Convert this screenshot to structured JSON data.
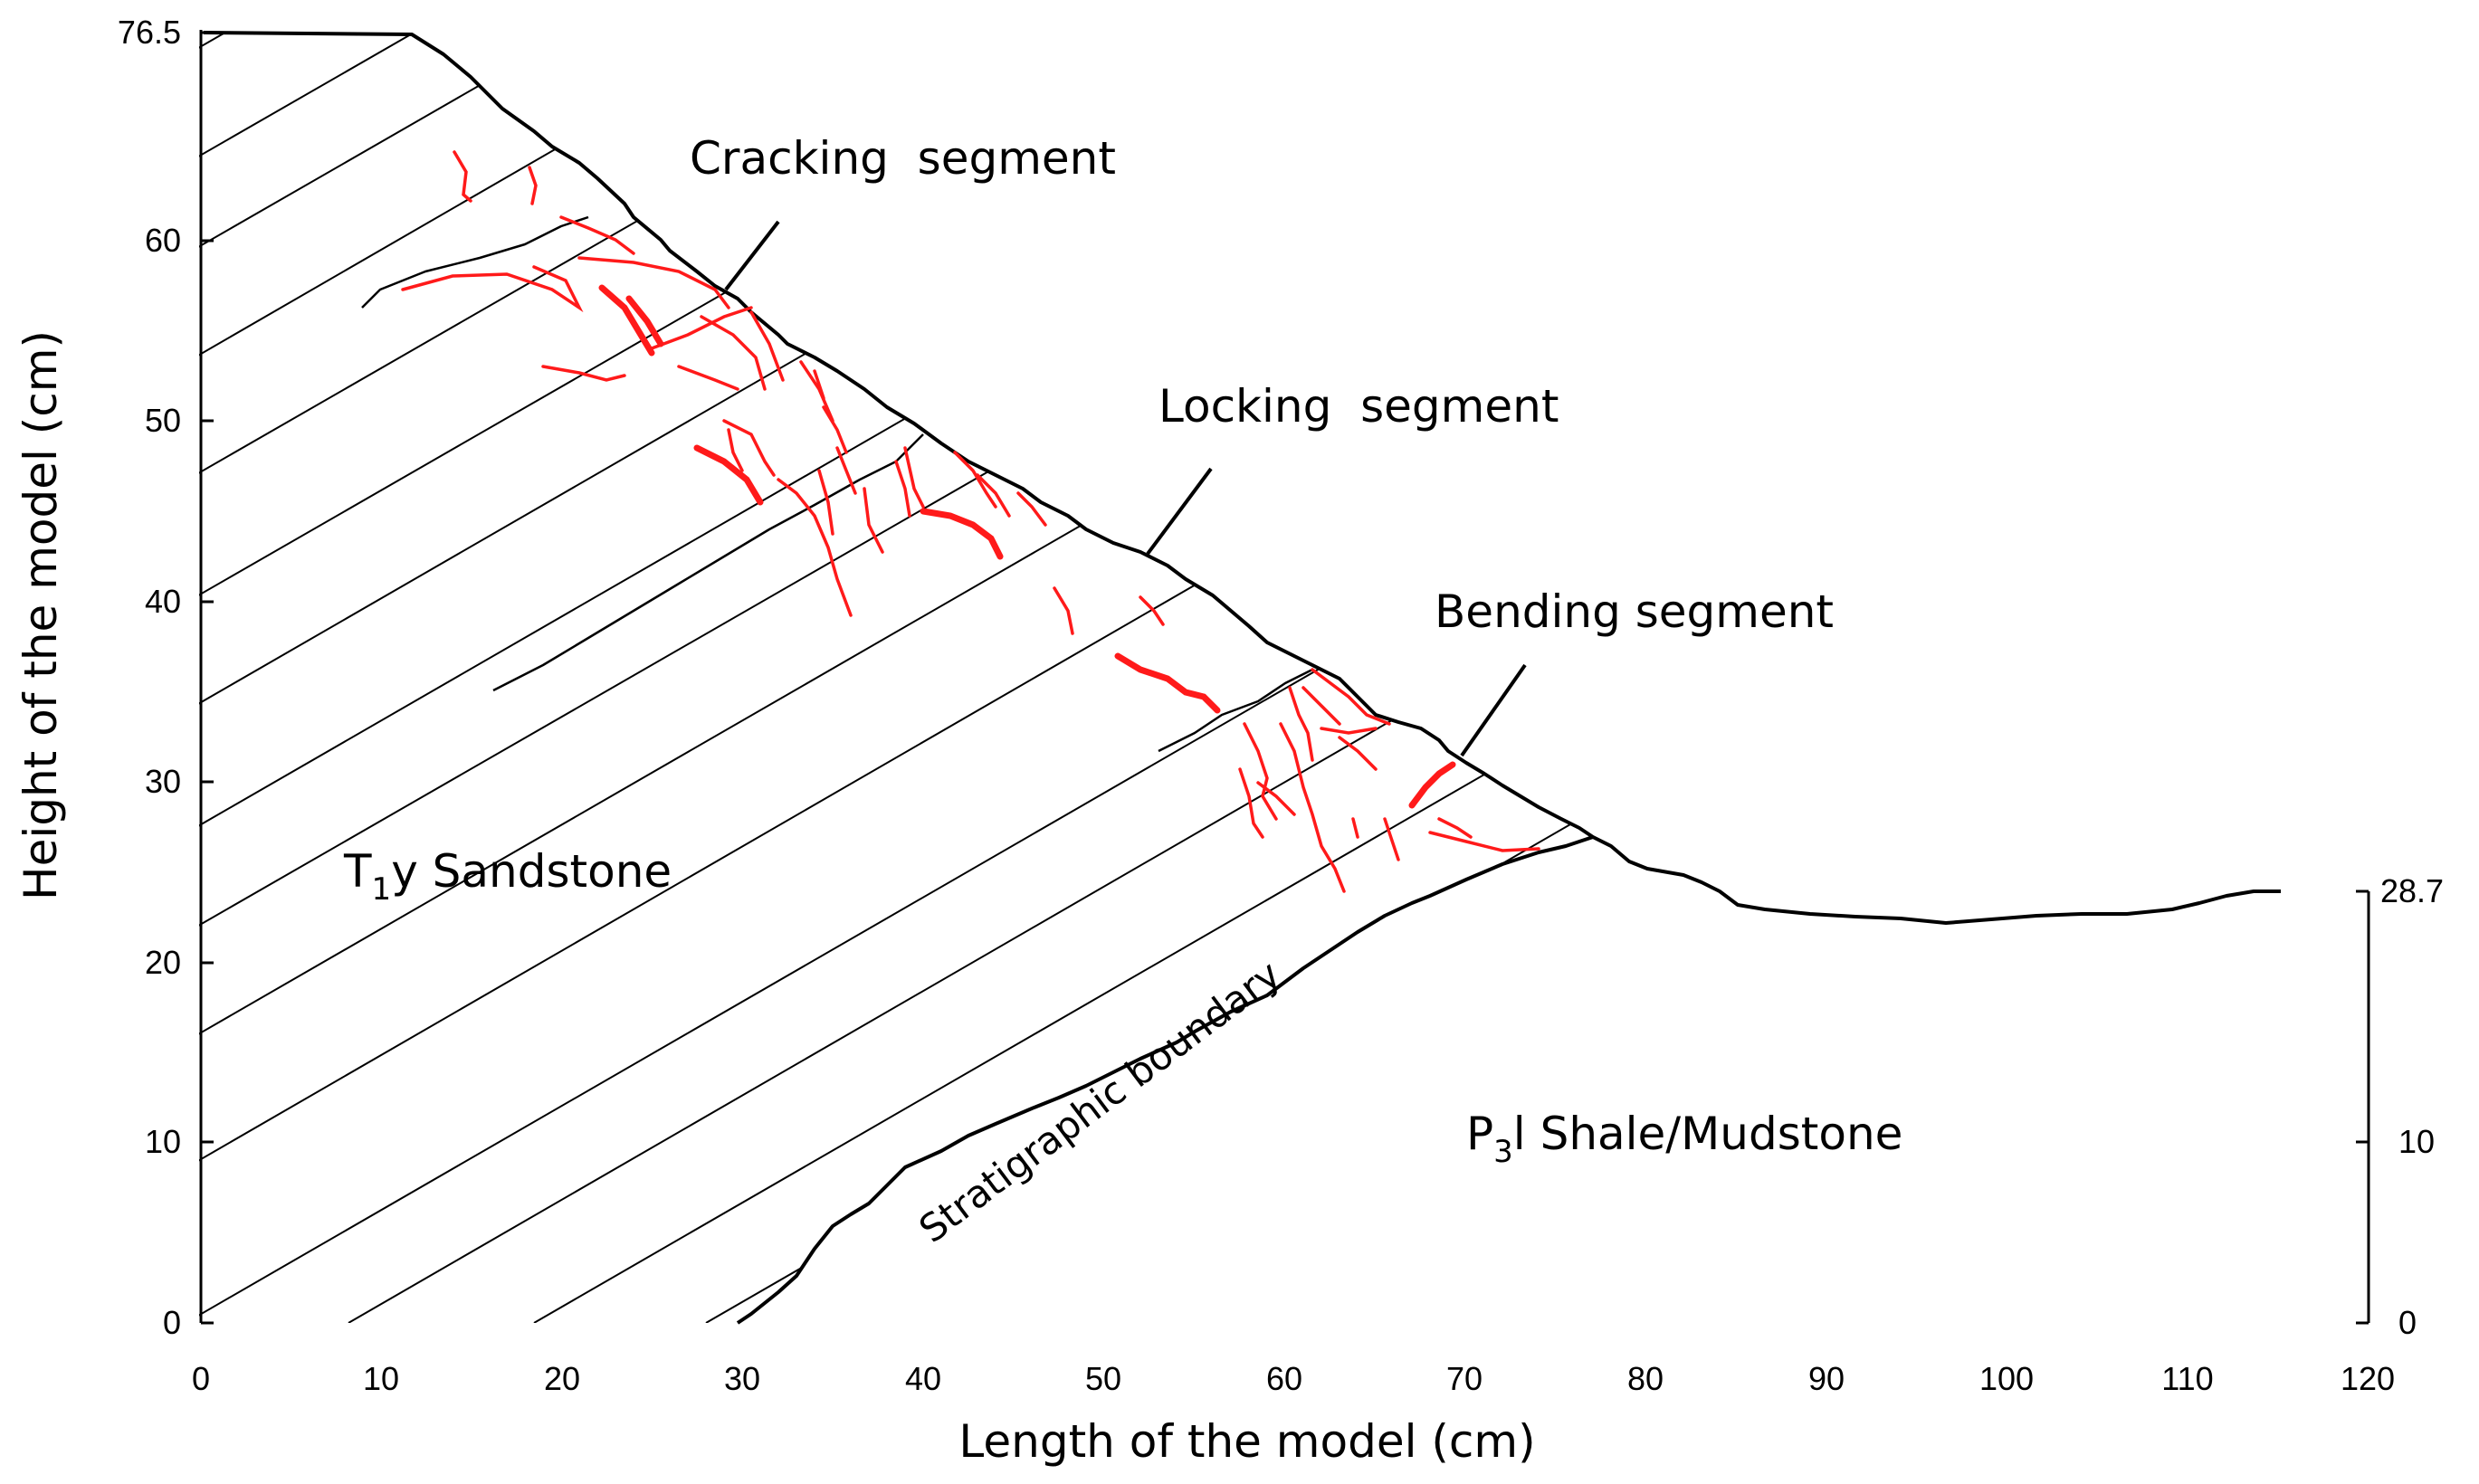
{
  "axes": {
    "x_title": "Length of the model (cm)",
    "y_title": "Height of the model (cm)",
    "x_ticks": [
      "0",
      "10",
      "20",
      "30",
      "40",
      "50",
      "60",
      "70",
      "80",
      "90",
      "100",
      "110",
      "120"
    ],
    "y_ticks_left": [
      "0",
      "10",
      "20",
      "30",
      "40",
      "50",
      "60"
    ],
    "y_top_left": "76.5",
    "y_ticks_right": [
      "0",
      "10"
    ],
    "y_top_right": "28.7"
  },
  "labels": {
    "cracking": "Cracking  segment",
    "locking": "Locking  segment",
    "bending": "Bending segment",
    "sandstone_prefix": "T",
    "sandstone_sub": "1",
    "sandstone_rest": "y Sandstone",
    "shale_prefix": "P",
    "shale_sub": "3",
    "shale_rest": "l Shale/Mudstone",
    "boundary": "Stratigraphic boundary"
  },
  "colors": {
    "crack": "#ff1a1a",
    "line": "#000000"
  }
}
